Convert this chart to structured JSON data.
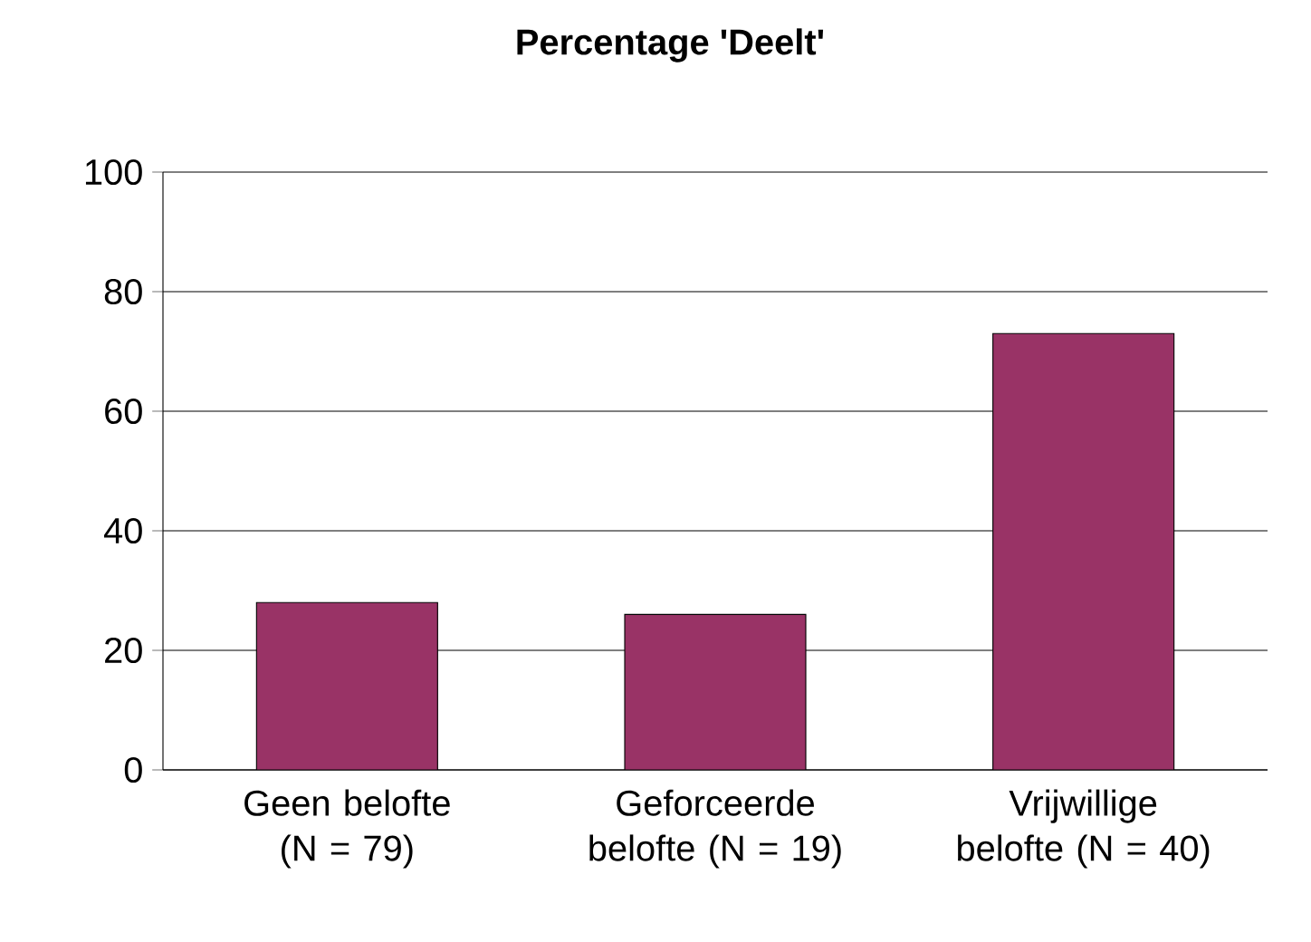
{
  "chart_data": {
    "type": "bar",
    "title": "Percentage 'Deelt'",
    "categories": [
      "Geen belofte (N = 79)",
      "Geforceerde belofte (N = 19)",
      "Vrijwillige belofte (N = 40)"
    ],
    "values": [
      28,
      26,
      73
    ],
    "color": "#993366",
    "ylim": [
      0,
      100
    ],
    "yticks": [
      0,
      20,
      40,
      60,
      80,
      100
    ],
    "grid": "y"
  }
}
